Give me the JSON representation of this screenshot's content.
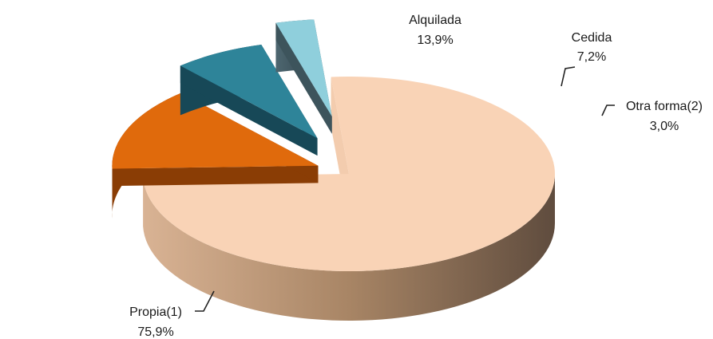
{
  "chart_data": {
    "type": "pie",
    "style": "3d-exploded",
    "slices": [
      {
        "name": "Propia(1)",
        "value": 75.9,
        "value_label": "75,9%",
        "color": "#f9d3b6",
        "side_color": "#b08a6c"
      },
      {
        "name": "Alquilada",
        "value": 13.9,
        "value_label": "13,9%",
        "color": "#e06a0c",
        "side_color": "#8a3d05"
      },
      {
        "name": "Cedida",
        "value": 7.2,
        "value_label": "7,2%",
        "color": "#2e8499",
        "side_color": "#174857"
      },
      {
        "name": "Otra forma(2)",
        "value": 3.0,
        "value_label": "3,0%",
        "color": "#8fcfdc",
        "side_color": "#3d545c"
      }
    ],
    "legend": "none"
  }
}
